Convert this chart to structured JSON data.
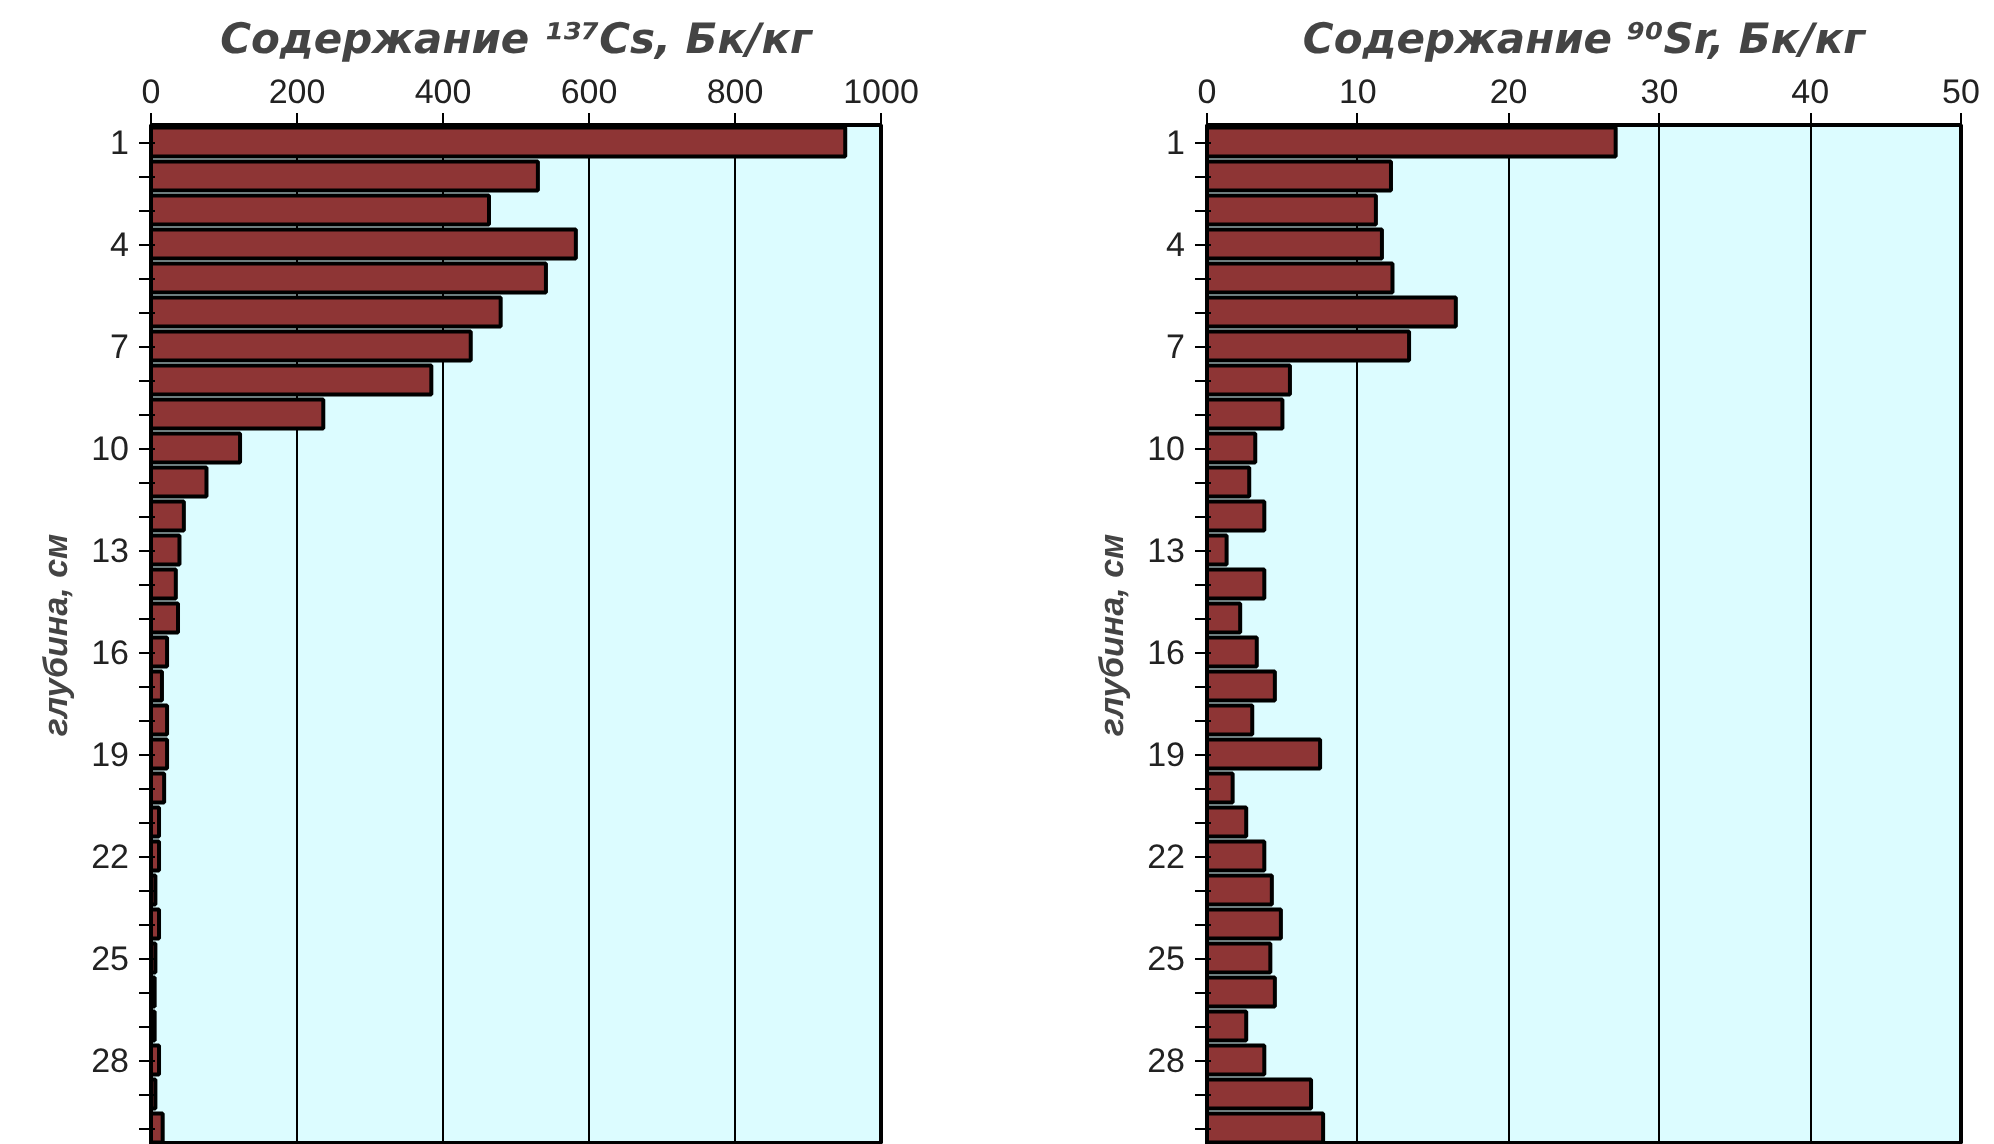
{
  "chart_data": [
    {
      "type": "bar",
      "orientation": "horizontal",
      "title": "Содержание ¹³⁷Cs, Бк/кг",
      "ylabel": "глубина, см",
      "categories": [
        "1",
        null,
        null,
        "4",
        null,
        null,
        "7",
        null,
        null,
        "10",
        null,
        null,
        "13",
        null,
        null,
        "16",
        null,
        null,
        "19",
        null,
        null,
        "22",
        null,
        null,
        "25",
        null,
        null,
        "28",
        null,
        null
      ],
      "values": [
        951,
        530,
        463,
        582,
        541,
        479,
        438,
        384,
        236,
        122,
        76,
        45,
        39,
        34,
        37,
        22,
        15,
        22,
        22,
        18,
        11,
        11,
        6,
        11,
        6,
        5,
        5,
        11,
        6,
        16
      ],
      "color": "#8e3535",
      "xlim": [
        0,
        1000
      ],
      "xticks": [
        0,
        200,
        400,
        600,
        800,
        1000
      ],
      "grid": "x"
    },
    {
      "type": "bar",
      "orientation": "horizontal",
      "title": "Содержание ⁹⁰Sr, Бк/кг",
      "ylabel": "глубина, см",
      "categories": [
        "1",
        null,
        null,
        "4",
        null,
        null,
        "7",
        null,
        null,
        "10",
        null,
        null,
        "13",
        null,
        null,
        "16",
        null,
        null,
        "19",
        null,
        null,
        "22",
        null,
        null,
        "25",
        null,
        null,
        "28",
        null,
        null
      ],
      "values": [
        27.1,
        12.2,
        11.2,
        11.6,
        12.3,
        16.5,
        13.4,
        5.5,
        5.0,
        3.2,
        2.8,
        3.8,
        1.3,
        3.8,
        2.2,
        3.3,
        4.5,
        3.0,
        7.5,
        1.7,
        2.6,
        3.8,
        4.3,
        4.9,
        4.2,
        4.5,
        2.6,
        3.8,
        6.9,
        7.7
      ],
      "color": "#8e3535",
      "xlim": [
        0,
        50
      ],
      "xticks": [
        0,
        10,
        20,
        30,
        40,
        50
      ],
      "grid": "x"
    }
  ]
}
